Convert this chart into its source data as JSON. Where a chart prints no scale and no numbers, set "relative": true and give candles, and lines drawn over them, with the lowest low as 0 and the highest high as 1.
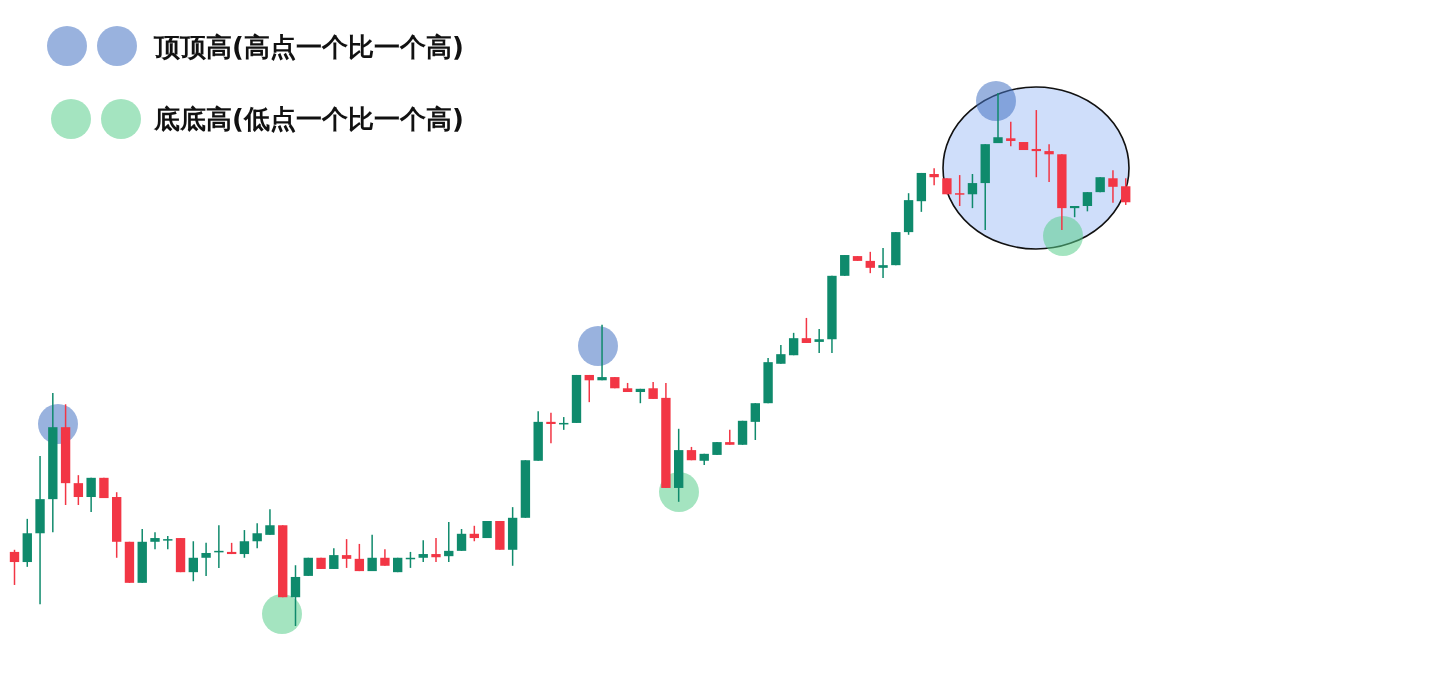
{
  "chart_data": {
    "type": "candlestick",
    "relative": true,
    "annotations": [
      "顶顶高(高点一个比一个高)",
      "底底高(低点一个比一个高)"
    ],
    "categories": [
      null,
      null,
      null,
      null,
      null,
      null,
      null,
      null,
      null,
      null,
      null,
      null,
      null,
      null,
      null,
      null,
      null,
      null,
      null,
      null,
      null,
      null,
      null,
      null,
      null,
      null,
      null,
      null,
      null,
      null,
      null,
      null,
      null,
      null,
      null,
      null,
      null,
      null,
      null,
      null,
      null,
      null,
      null,
      null,
      null,
      null,
      null,
      null,
      null,
      null,
      null,
      null,
      null,
      null,
      null,
      null,
      null,
      null,
      null,
      null,
      null,
      null,
      null,
      null,
      null,
      null,
      null,
      null,
      null,
      null,
      null,
      null,
      null,
      null,
      null,
      null,
      null,
      null,
      null,
      null,
      null,
      null,
      null,
      null,
      null,
      null,
      null,
      null
    ],
    "ohlc": [
      [
        0.139,
        0.143,
        0.077,
        0.12
      ],
      [
        0.12,
        0.201,
        0.111,
        0.174
      ],
      [
        0.174,
        0.319,
        0.041,
        0.238
      ],
      [
        0.238,
        0.437,
        0.176,
        0.373
      ],
      [
        0.373,
        0.416,
        0.227,
        0.268
      ],
      [
        0.268,
        0.283,
        0.227,
        0.242
      ],
      [
        0.242,
        0.278,
        0.214,
        0.278
      ],
      [
        0.278,
        0.278,
        0.24,
        0.24
      ],
      [
        0.242,
        0.251,
        0.128,
        0.158
      ],
      [
        0.158,
        0.158,
        0.081,
        0.081
      ],
      [
        0.081,
        0.182,
        0.081,
        0.158
      ],
      [
        0.158,
        0.176,
        0.144,
        0.165
      ],
      [
        0.161,
        0.169,
        0.144,
        0.163
      ],
      [
        0.165,
        0.165,
        0.101,
        0.101
      ],
      [
        0.101,
        0.159,
        0.084,
        0.128
      ],
      [
        0.128,
        0.156,
        0.094,
        0.137
      ],
      [
        0.139,
        0.189,
        0.109,
        0.141
      ],
      [
        0.139,
        0.156,
        0.135,
        0.135
      ],
      [
        0.135,
        0.18,
        0.128,
        0.159
      ],
      [
        0.159,
        0.193,
        0.146,
        0.174
      ],
      [
        0.171,
        0.219,
        0.171,
        0.189
      ],
      [
        0.189,
        0.189,
        0.054,
        0.054
      ],
      [
        0.054,
        0.114,
        0,
        0.092
      ],
      [
        0.094,
        0.128,
        0.094,
        0.128
      ],
      [
        0.128,
        0.128,
        0.107,
        0.107
      ],
      [
        0.107,
        0.146,
        0.107,
        0.133
      ],
      [
        0.133,
        0.163,
        0.109,
        0.126
      ],
      [
        0.126,
        0.154,
        0.103,
        0.103
      ],
      [
        0.103,
        0.171,
        0.103,
        0.128
      ],
      [
        0.128,
        0.144,
        0.113,
        0.113
      ],
      [
        0.101,
        0.128,
        0.101,
        0.128
      ],
      [
        0.126,
        0.139,
        0.109,
        0.128
      ],
      [
        0.128,
        0.161,
        0.12,
        0.135
      ],
      [
        0.135,
        0.165,
        0.12,
        0.129
      ],
      [
        0.131,
        0.195,
        0.12,
        0.141
      ],
      [
        0.141,
        0.182,
        0.141,
        0.173
      ],
      [
        0.173,
        0.188,
        0.159,
        0.165
      ],
      [
        0.165,
        0.197,
        0.165,
        0.197
      ],
      [
        0.197,
        0.197,
        0.143,
        0.143
      ],
      [
        0.143,
        0.223,
        0.113,
        0.203
      ],
      [
        0.203,
        0.311,
        0.203,
        0.311
      ],
      [
        0.31,
        0.403,
        0.31,
        0.383
      ],
      [
        0.383,
        0.4,
        0.343,
        0.379
      ],
      [
        0.379,
        0.392,
        0.368,
        0.381
      ],
      [
        0.381,
        0.471,
        0.381,
        0.471
      ],
      [
        0.471,
        0.471,
        0.42,
        0.461
      ],
      [
        0.461,
        0.565,
        0.461,
        0.467
      ],
      [
        0.467,
        0.467,
        0.446,
        0.446
      ],
      [
        0.446,
        0.456,
        0.439,
        0.439
      ],
      [
        0.439,
        0.445,
        0.418,
        0.445
      ],
      [
        0.446,
        0.458,
        0.426,
        0.426
      ],
      [
        0.428,
        0.456,
        0.259,
        0.259
      ],
      [
        0.259,
        0.37,
        0.233,
        0.33
      ],
      [
        0.33,
        0.336,
        0.311,
        0.311
      ],
      [
        0.31,
        0.323,
        0.302,
        0.323
      ],
      [
        0.321,
        0.345,
        0.321,
        0.345
      ],
      [
        0.345,
        0.368,
        0.34,
        0.34
      ],
      [
        0.34,
        0.385,
        0.34,
        0.385
      ],
      [
        0.383,
        0.418,
        0.349,
        0.418
      ],
      [
        0.418,
        0.503,
        0.418,
        0.495
      ],
      [
        0.492,
        0.527,
        0.492,
        0.51
      ],
      [
        0.508,
        0.55,
        0.508,
        0.54
      ],
      [
        0.54,
        0.578,
        0.531,
        0.531
      ],
      [
        0.533,
        0.557,
        0.512,
        0.538
      ],
      [
        0.538,
        0.657,
        0.512,
        0.657
      ],
      [
        0.657,
        0.696,
        0.657,
        0.696
      ],
      [
        0.694,
        0.694,
        0.685,
        0.685
      ],
      [
        0.685,
        0.702,
        0.662,
        0.672
      ],
      [
        0.672,
        0.709,
        0.653,
        0.677
      ],
      [
        0.677,
        0.739,
        0.677,
        0.739
      ],
      [
        0.739,
        0.812,
        0.734,
        0.799
      ],
      [
        0.797,
        0.85,
        0.777,
        0.85
      ],
      [
        0.848,
        0.859,
        0.827,
        0.842
      ],
      [
        0.84,
        0.84,
        0.81,
        0.81
      ],
      [
        0.812,
        0.846,
        0.788,
        0.81
      ],
      [
        0.81,
        0.848,
        0.784,
        0.831
      ],
      [
        0.831,
        0.904,
        0.743,
        0.904
      ],
      [
        0.906,
        1,
        0.906,
        0.917
      ],
      [
        0.915,
        0.946,
        0.9,
        0.91
      ],
      [
        0.908,
        0.908,
        0.893,
        0.893
      ],
      [
        0.895,
        0.968,
        0.842,
        0.891
      ],
      [
        0.891,
        0.904,
        0.833,
        0.885
      ],
      [
        0.885,
        0.885,
        0.743,
        0.784
      ],
      [
        0.784,
        0.788,
        0.767,
        0.788
      ],
      [
        0.788,
        0.814,
        0.778,
        0.814
      ],
      [
        0.814,
        0.842,
        0.814,
        0.842
      ],
      [
        0.84,
        0.855,
        0.794,
        0.824
      ],
      [
        0.825,
        0.84,
        0.79,
        0.795
      ]
    ],
    "colors": [
      "#f23645",
      "#0f8a6c",
      "#0f8a6c",
      "#0f8a6c",
      "#f23645",
      "#f23645",
      "#0f8a6c",
      "#f23645",
      "#f23645",
      "#f23645",
      "#0f8a6c",
      "#0f8a6c",
      "#0f8a6c",
      "#f23645",
      "#0f8a6c",
      "#0f8a6c",
      "#0f8a6c",
      "#f23645",
      "#0f8a6c",
      "#0f8a6c",
      "#0f8a6c",
      "#f23645",
      "#0f8a6c",
      "#0f8a6c",
      "#f23645",
      "#0f8a6c",
      "#f23645",
      "#f23645",
      "#0f8a6c",
      "#f23645",
      "#0f8a6c",
      "#0f8a6c",
      "#0f8a6c",
      "#f23645",
      "#0f8a6c",
      "#0f8a6c",
      "#f23645",
      "#0f8a6c",
      "#f23645",
      "#0f8a6c",
      "#0f8a6c",
      "#0f8a6c",
      "#f23645",
      "#0f8a6c",
      "#0f8a6c",
      "#f23645",
      "#0f8a6c",
      "#f23645",
      "#f23645",
      "#0f8a6c",
      "#f23645",
      "#f23645",
      "#0f8a6c",
      "#f23645",
      "#0f8a6c",
      "#0f8a6c",
      "#f23645",
      "#0f8a6c",
      "#0f8a6c",
      "#0f8a6c",
      "#0f8a6c",
      "#0f8a6c",
      "#f23645",
      "#0f8a6c",
      "#0f8a6c",
      "#0f8a6c",
      "#f23645",
      "#f23645",
      "#0f8a6c",
      "#0f8a6c",
      "#0f8a6c",
      "#0f8a6c",
      "#f23645",
      "#f23645",
      "#f23645",
      "#0f8a6c",
      "#0f8a6c",
      "#0f8a6c",
      "#f23645",
      "#f23645",
      "#f23645",
      "#f23645",
      "#f23645",
      "#0f8a6c",
      "#0f8a6c",
      "#0f8a6c",
      "#f23645",
      "#f23645"
    ]
  }
}
